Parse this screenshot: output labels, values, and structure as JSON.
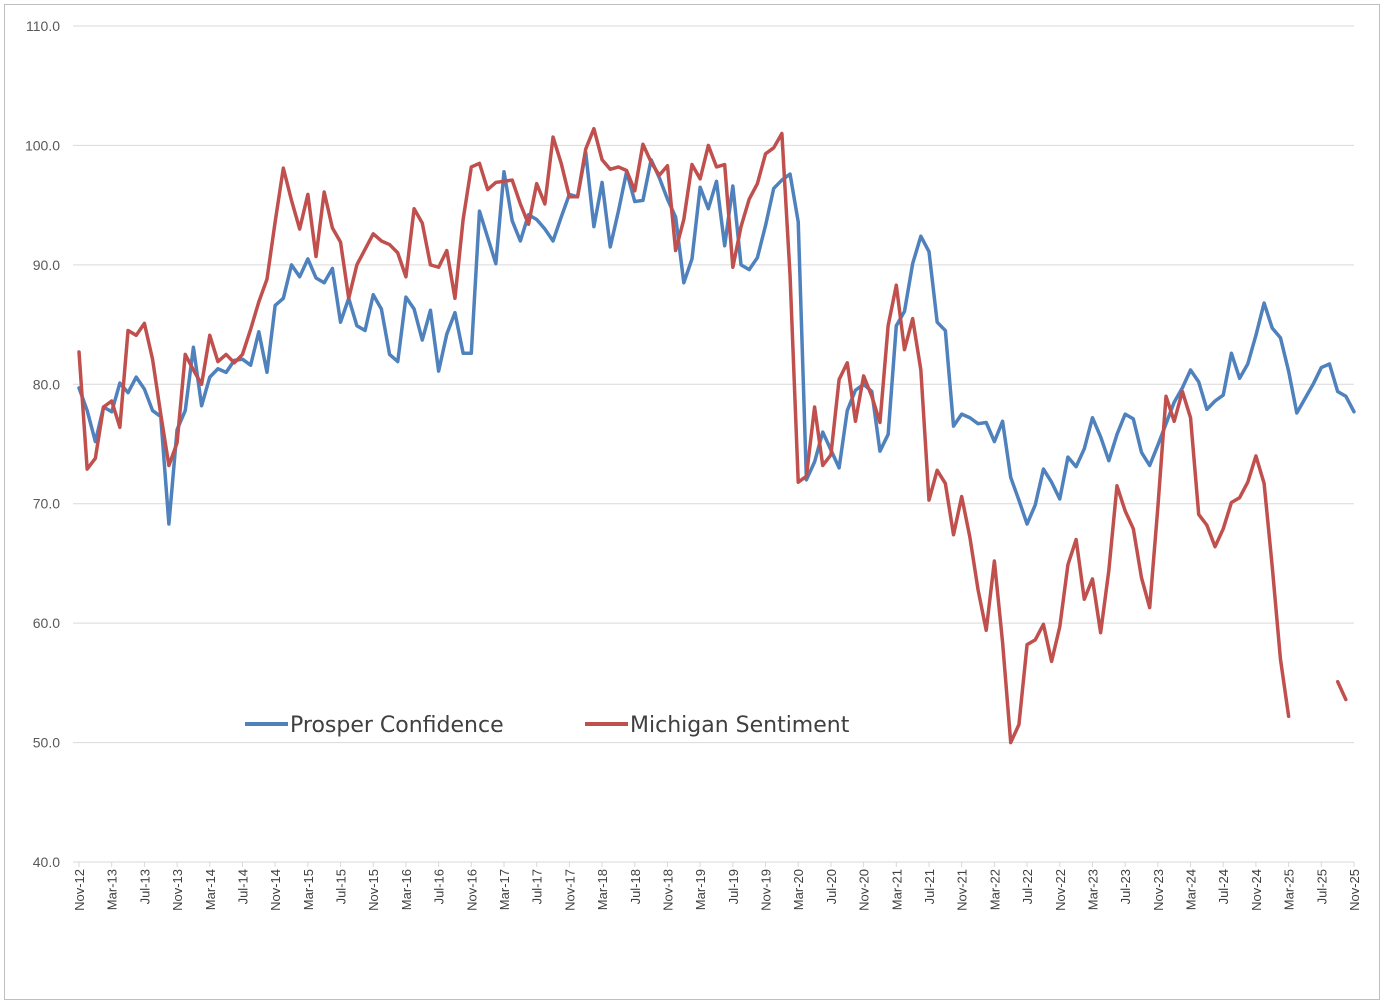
{
  "chart_data": {
    "type": "line",
    "title": "",
    "xlabel": "",
    "ylabel": "",
    "ylim": [
      40,
      110
    ],
    "yticks": [
      40,
      50,
      60,
      70,
      80,
      90,
      100,
      110
    ],
    "ytick_labels": [
      "40.0",
      "50.0",
      "60.0",
      "70.0",
      "80.0",
      "90.0",
      "100.0",
      "110.0"
    ],
    "x_start": "Nov-12",
    "x_end": "Nov-25",
    "n_months": 157,
    "xtick_labels": [
      "Nov-12",
      "Mar-13",
      "Jul-13",
      "Nov-13",
      "Mar-14",
      "Jul-14",
      "Nov-14",
      "Mar-15",
      "Jul-15",
      "Nov-15",
      "Mar-16",
      "Jul-16",
      "Nov-16",
      "Mar-17",
      "Jul-17",
      "Nov-17",
      "Mar-18",
      "Jul-18",
      "Nov-18",
      "Mar-19",
      "Jul-19",
      "Nov-19",
      "Mar-20",
      "Jul-20",
      "Nov-20",
      "Mar-21",
      "Jul-21",
      "Nov-21",
      "Mar-22",
      "Jul-22",
      "Nov-22",
      "Mar-23",
      "Jul-23",
      "Nov-23",
      "Mar-24",
      "Jul-24",
      "Nov-24",
      "Mar-25",
      "Jul-25",
      "Nov-25"
    ],
    "legend": {
      "placement": "bottom-center-left",
      "entries": [
        "Prosper Confidence",
        "Michigan Sentiment"
      ]
    },
    "series": [
      {
        "name": "Prosper Confidence",
        "color": "#4f81bd",
        "values": [
          79.7,
          77.8,
          75.2,
          78.1,
          77.7,
          80.1,
          79.3,
          80.6,
          79.6,
          77.8,
          77.3,
          68.3,
          76.2,
          77.8,
          83.1,
          78.2,
          80.6,
          81.3,
          81.0,
          82.0,
          82.1,
          81.6,
          84.4,
          81.0,
          86.6,
          87.2,
          90.0,
          89.0,
          90.5,
          88.9,
          88.5,
          89.7,
          85.2,
          87.2,
          84.9,
          84.5,
          87.5,
          86.3,
          82.5,
          81.9,
          87.3,
          86.3,
          83.7,
          86.2,
          81.1,
          84.2,
          86.0,
          82.6,
          82.6,
          94.5,
          92.3,
          90.1,
          97.8,
          93.7,
          92.0,
          94.2,
          93.8,
          93.0,
          92.0,
          94.0,
          95.9,
          95.7,
          99.4,
          93.2,
          96.9,
          91.5,
          94.5,
          97.8,
          95.3,
          95.4,
          98.8,
          97.3,
          95.5,
          94.0,
          88.5,
          90.5,
          96.5,
          94.7,
          97.0,
          91.6,
          96.6,
          90.0,
          89.6,
          90.6,
          93.3,
          96.4,
          97.1,
          97.6,
          93.6,
          72.0,
          73.5,
          76.0,
          74.5,
          73.0,
          77.8,
          79.5,
          80.0,
          79.4,
          74.4,
          75.8,
          84.9,
          86.1,
          90.1,
          92.4,
          91.1,
          85.2,
          84.5,
          76.5,
          77.5,
          77.2,
          76.7,
          76.8,
          75.2,
          76.9,
          72.2,
          70.3,
          68.3,
          69.9,
          72.9,
          71.8,
          70.4,
          73.9,
          73.1,
          74.6,
          77.2,
          75.6,
          73.6,
          75.8,
          77.5,
          77.1,
          74.3,
          73.2,
          74.9,
          76.7,
          78.5,
          79.7,
          81.2,
          80.2,
          77.9,
          78.6,
          79.1,
          82.6,
          80.5,
          81.7,
          84.1,
          86.8,
          84.7,
          83.9,
          81.1,
          77.6,
          78.8,
          80.0,
          81.4,
          81.7,
          79.4,
          79.0,
          77.7
        ]
      },
      {
        "name": "Michigan Sentiment",
        "color": "#c0504d",
        "values": [
          82.7,
          72.9,
          73.8,
          78.1,
          78.6,
          76.4,
          84.5,
          84.1,
          85.1,
          82.1,
          77.5,
          73.2,
          75.1,
          82.5,
          81.2,
          80.0,
          84.1,
          81.9,
          82.5,
          81.8,
          82.5,
          84.6,
          86.9,
          88.8,
          93.6,
          98.1,
          95.4,
          93.0,
          95.9,
          90.7,
          96.1,
          93.1,
          91.9,
          87.2,
          90.0,
          91.3,
          92.6,
          92.0,
          91.7,
          91.0,
          89.0,
          94.7,
          93.5,
          90.0,
          89.8,
          91.2,
          87.2,
          93.8,
          98.2,
          98.5,
          96.3,
          96.9,
          97.0,
          97.1,
          95.1,
          93.4,
          96.8,
          95.1,
          100.7,
          98.5,
          95.7,
          95.7,
          99.7,
          101.4,
          98.8,
          98.0,
          98.2,
          97.9,
          96.2,
          100.1,
          98.6,
          97.5,
          98.3,
          91.2,
          93.8,
          98.4,
          97.2,
          100.0,
          98.2,
          98.4,
          89.8,
          93.2,
          95.5,
          96.8,
          99.3,
          99.8,
          101.0,
          89.1,
          71.8,
          72.3,
          78.1,
          73.2,
          74.1,
          80.4,
          81.8,
          76.9,
          80.7,
          79.0,
          76.8,
          84.9,
          88.3,
          82.9,
          85.5,
          81.2,
          70.3,
          72.8,
          71.7,
          67.4,
          70.6,
          67.2,
          62.8,
          59.4,
          65.2,
          58.4,
          50.0,
          51.5,
          58.2,
          58.6,
          59.9,
          56.8,
          59.7,
          64.9,
          67.0,
          62.0,
          63.7,
          59.2,
          64.4,
          71.5,
          69.4,
          67.9,
          63.8,
          61.3,
          69.7,
          79.0,
          76.9,
          79.4,
          77.2,
          69.1,
          68.2,
          66.4,
          67.9,
          70.1,
          70.5,
          71.8,
          74.0,
          71.7,
          64.7,
          57.0,
          52.2,
          null,
          null,
          null,
          null,
          null,
          55.1,
          53.6
        ]
      }
    ]
  }
}
